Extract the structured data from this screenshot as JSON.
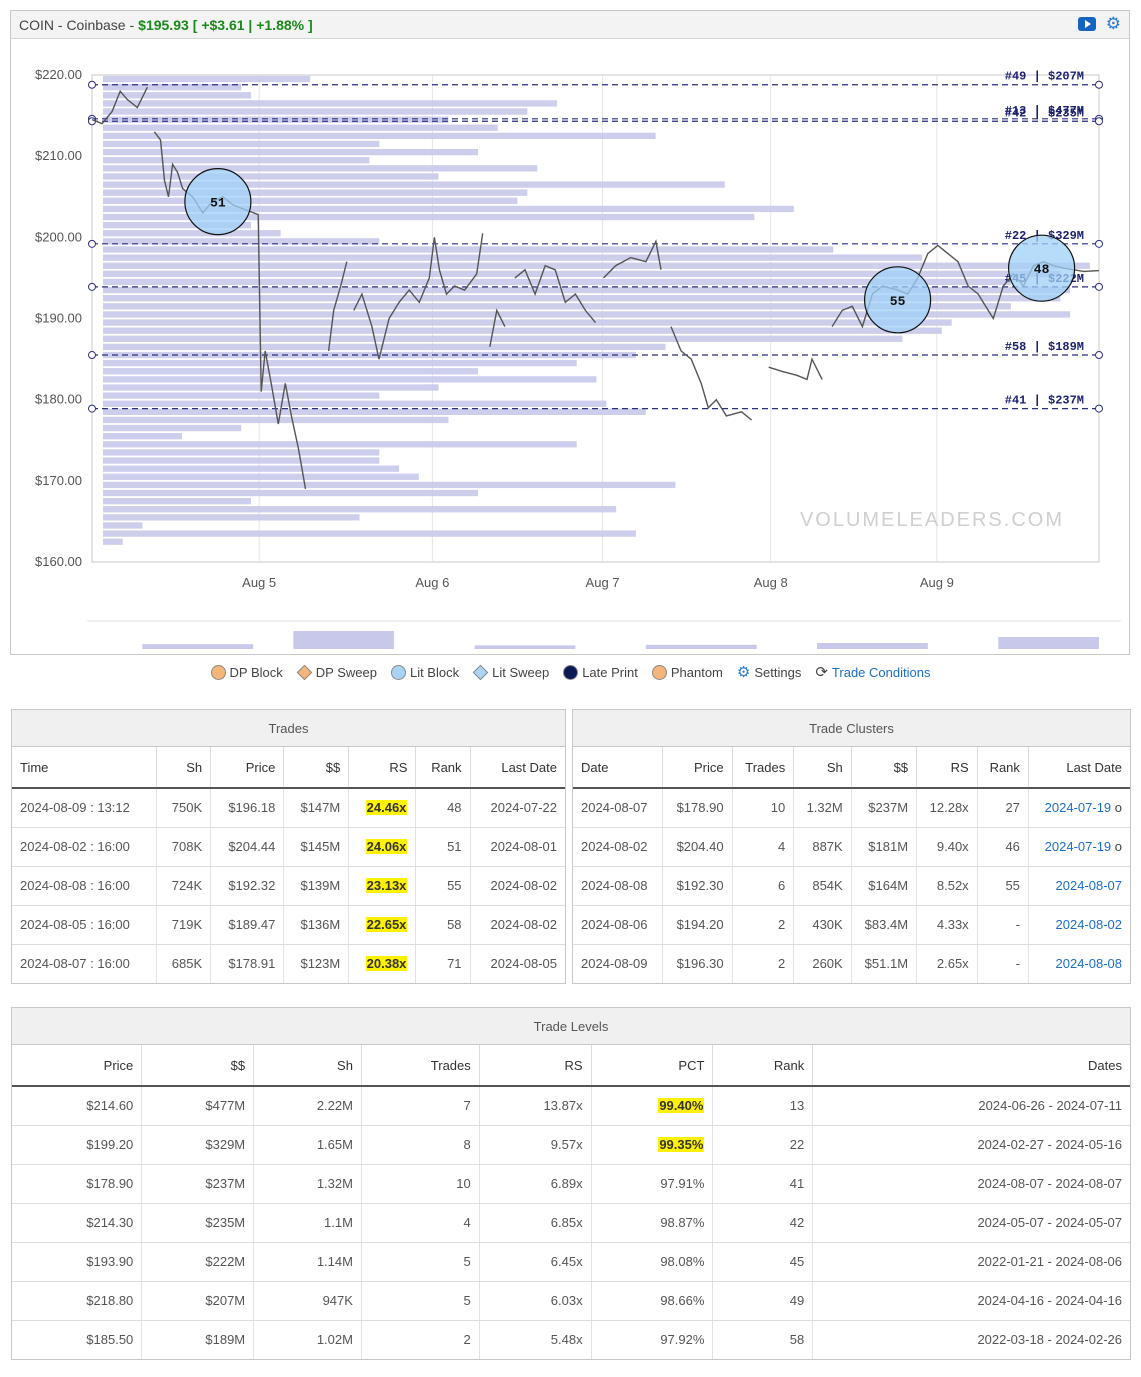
{
  "header": {
    "symbol": "COIN - Coinbase -",
    "price": "$195.93",
    "change": "[ +$3.61 | +1.88% ]",
    "icons": [
      "youtube-icon",
      "settings-gear-icon"
    ]
  },
  "chart_data": {
    "type": "line",
    "title": "",
    "ylim": [
      160,
      220
    ],
    "y_ticks": [
      "$220.00",
      "$210.00",
      "$200.00",
      "$190.00",
      "$180.00",
      "$170.00",
      "$160.00"
    ],
    "x_ticks": [
      "Aug 5",
      "Aug 6",
      "Aug 7",
      "Aug 8",
      "Aug 9"
    ],
    "watermark": "VOLUMELEADERS.COM",
    "levels": [
      {
        "label": "#49 | $207M",
        "price": 218.8
      },
      {
        "label": "#13 | $477M",
        "price": 214.6
      },
      {
        "label": "#42 | $235M",
        "price": 214.3
      },
      {
        "label": "#22 | $329M",
        "price": 199.2
      },
      {
        "label": "#45 | $222M",
        "price": 193.9
      },
      {
        "label": "#58 | $189M",
        "price": 185.5
      },
      {
        "label": "#41 | $237M",
        "price": 178.9
      }
    ],
    "bubbles": [
      {
        "label": "51",
        "price": 204.4,
        "time": 0.125
      },
      {
        "label": "55",
        "price": 192.3,
        "time": 0.8
      },
      {
        "label": "48",
        "price": 196.2,
        "time": 0.943
      }
    ],
    "price_series": [
      [
        0.0,
        214.5
      ],
      [
        0.01,
        214
      ],
      [
        0.02,
        215.5
      ],
      [
        0.028,
        218
      ],
      [
        0.035,
        217
      ],
      [
        0.045,
        216
      ],
      [
        0.055,
        218.5
      ],
      [
        0.062,
        213
      ],
      [
        0.068,
        212
      ],
      [
        0.072,
        207
      ],
      [
        0.076,
        205
      ],
      [
        0.08,
        209
      ],
      [
        0.085,
        208
      ],
      [
        0.09,
        206
      ],
      [
        0.1,
        205
      ],
      [
        0.11,
        203
      ],
      [
        0.12,
        204.5
      ],
      [
        0.13,
        205
      ],
      [
        0.14,
        204
      ],
      [
        0.15,
        203.5
      ],
      [
        0.165,
        202.8
      ],
      [
        0.168,
        181
      ],
      [
        0.172,
        186
      ],
      [
        0.178,
        182
      ],
      [
        0.185,
        177
      ],
      [
        0.192,
        182
      ],
      [
        0.198,
        178
      ],
      [
        0.205,
        174
      ],
      [
        0.212,
        169
      ],
      [
        0.218,
        163
      ],
      [
        0.222,
        172
      ],
      [
        0.226,
        161
      ],
      [
        0.23,
        176
      ],
      [
        0.235,
        186
      ],
      [
        0.24,
        191
      ],
      [
        0.247,
        194
      ],
      [
        0.253,
        197
      ],
      [
        0.26,
        191
      ],
      [
        0.268,
        193
      ],
      [
        0.278,
        189
      ],
      [
        0.285,
        185
      ],
      [
        0.295,
        190
      ],
      [
        0.305,
        192
      ],
      [
        0.315,
        193.5
      ],
      [
        0.325,
        192
      ],
      [
        0.335,
        195
      ],
      [
        0.34,
        200
      ],
      [
        0.345,
        196
      ],
      [
        0.352,
        193
      ],
      [
        0.36,
        194
      ],
      [
        0.37,
        193.5
      ],
      [
        0.382,
        195.5
      ],
      [
        0.388,
        200.5
      ],
      [
        0.395,
        186.5
      ],
      [
        0.402,
        191
      ],
      [
        0.41,
        189
      ],
      [
        0.42,
        195
      ],
      [
        0.43,
        196
      ],
      [
        0.44,
        193
      ],
      [
        0.45,
        196.5
      ],
      [
        0.46,
        196
      ],
      [
        0.47,
        192
      ],
      [
        0.48,
        193
      ],
      [
        0.49,
        191
      ],
      [
        0.5,
        189.5
      ],
      [
        0.508,
        195
      ],
      [
        0.52,
        196.5
      ],
      [
        0.535,
        197.5
      ],
      [
        0.55,
        197
      ],
      [
        0.56,
        199.5
      ],
      [
        0.565,
        196
      ],
      [
        0.575,
        189
      ],
      [
        0.585,
        186
      ],
      [
        0.595,
        185
      ],
      [
        0.605,
        182
      ],
      [
        0.612,
        179
      ],
      [
        0.62,
        180
      ],
      [
        0.63,
        178
      ],
      [
        0.645,
        178.5
      ],
      [
        0.655,
        177.5
      ],
      [
        0.672,
        184
      ],
      [
        0.685,
        183.5
      ],
      [
        0.7,
        183
      ],
      [
        0.71,
        182.5
      ],
      [
        0.715,
        185
      ],
      [
        0.725,
        182.5
      ],
      [
        0.735,
        189
      ],
      [
        0.745,
        191
      ],
      [
        0.755,
        191.5
      ],
      [
        0.765,
        189
      ],
      [
        0.775,
        193
      ],
      [
        0.785,
        194
      ],
      [
        0.8,
        193.5
      ],
      [
        0.81,
        193
      ],
      [
        0.82,
        195
      ],
      [
        0.83,
        198
      ],
      [
        0.84,
        199
      ],
      [
        0.85,
        198
      ],
      [
        0.86,
        197
      ],
      [
        0.87,
        194
      ],
      [
        0.88,
        193
      ],
      [
        0.89,
        191
      ],
      [
        0.895,
        190
      ],
      [
        0.905,
        194
      ],
      [
        0.915,
        195.5
      ],
      [
        0.925,
        194
      ],
      [
        0.935,
        196.5
      ],
      [
        0.945,
        197
      ],
      [
        0.955,
        196.5
      ],
      [
        0.965,
        196.2
      ],
      [
        0.975,
        196
      ],
      [
        0.985,
        195.8
      ],
      [
        1.0,
        195.9
      ]
    ],
    "profile_bars": [
      [
        219.5,
        0.21
      ],
      [
        218.5,
        0.14
      ],
      [
        217.5,
        0.15
      ],
      [
        216.5,
        0.46
      ],
      [
        215.5,
        0.43
      ],
      [
        214.5,
        0.35
      ],
      [
        213.5,
        0.4
      ],
      [
        212.5,
        0.56
      ],
      [
        211.5,
        0.28
      ],
      [
        210.5,
        0.38
      ],
      [
        209.5,
        0.27
      ],
      [
        208.5,
        0.44
      ],
      [
        207.5,
        0.34
      ],
      [
        206.5,
        0.63
      ],
      [
        205.5,
        0.43
      ],
      [
        204.5,
        0.42
      ],
      [
        203.5,
        0.7
      ],
      [
        202.5,
        0.66
      ],
      [
        201.5,
        0.15
      ],
      [
        200.5,
        0.18
      ],
      [
        199.5,
        0.28
      ],
      [
        198.5,
        0.74
      ],
      [
        197.5,
        0.83
      ],
      [
        196.5,
        1.0
      ],
      [
        195.5,
        0.97
      ],
      [
        194.5,
        0.92
      ],
      [
        193.5,
        0.98
      ],
      [
        192.5,
        0.97
      ],
      [
        191.5,
        0.92
      ],
      [
        190.5,
        0.98
      ],
      [
        189.5,
        0.86
      ],
      [
        188.5,
        0.85
      ],
      [
        187.5,
        0.81
      ],
      [
        186.5,
        0.57
      ],
      [
        185.5,
        0.54
      ],
      [
        184.5,
        0.48
      ],
      [
        183.5,
        0.38
      ],
      [
        182.5,
        0.5
      ],
      [
        181.5,
        0.34
      ],
      [
        180.5,
        0.28
      ],
      [
        179.5,
        0.51
      ],
      [
        178.5,
        0.55
      ],
      [
        177.5,
        0.35
      ],
      [
        176.5,
        0.14
      ],
      [
        175.5,
        0.08
      ],
      [
        174.5,
        0.48
      ],
      [
        173.5,
        0.28
      ],
      [
        172.5,
        0.28
      ],
      [
        171.5,
        0.3
      ],
      [
        170.5,
        0.32
      ],
      [
        169.5,
        0.58
      ],
      [
        168.5,
        0.38
      ],
      [
        167.5,
        0.15
      ],
      [
        166.5,
        0.52
      ],
      [
        165.5,
        0.26
      ],
      [
        164.5,
        0.04
      ],
      [
        163.5,
        0.54
      ],
      [
        162.5,
        0.02
      ]
    ]
  },
  "legend": [
    {
      "label": "DP Block",
      "color": "#f4b57b",
      "shape": "circle"
    },
    {
      "label": "DP Sweep",
      "color": "#f4b57b",
      "shape": "diamond"
    },
    {
      "label": "Lit Block",
      "color": "#a9d4f5",
      "shape": "circle"
    },
    {
      "label": "Lit Sweep",
      "color": "#a9d4f5",
      "shape": "diamond"
    },
    {
      "label": "Late Print",
      "color": "#0b1a55",
      "shape": "circle"
    },
    {
      "label": "Phantom",
      "color": "#f4b57b",
      "shape": "circle"
    },
    {
      "label": "Settings",
      "icon": "settings-gear-icon"
    },
    {
      "label": "Trade Conditions",
      "icon": "trade-conditions-icon"
    }
  ],
  "trades": {
    "title": "Trades",
    "columns": [
      "Time",
      "Sh",
      "Price",
      "$$",
      "RS",
      "Rank",
      "Last Date"
    ],
    "rows": [
      [
        "2024-08-09 : 13:12",
        "750K",
        "$196.18",
        "$147M",
        "24.46x",
        "48",
        "2024-07-22"
      ],
      [
        "2024-08-02 : 16:00",
        "708K",
        "$204.44",
        "$145M",
        "24.06x",
        "51",
        "2024-08-01"
      ],
      [
        "2024-08-08 : 16:00",
        "724K",
        "$192.32",
        "$139M",
        "23.13x",
        "55",
        "2024-08-02"
      ],
      [
        "2024-08-05 : 16:00",
        "719K",
        "$189.47",
        "$136M",
        "22.65x",
        "58",
        "2024-08-02"
      ],
      [
        "2024-08-07 : 16:00",
        "685K",
        "$178.91",
        "$123M",
        "20.38x",
        "71",
        "2024-08-05"
      ]
    ]
  },
  "clusters": {
    "title": "Trade Clusters",
    "columns": [
      "Date",
      "Price",
      "Trades",
      "Sh",
      "$$",
      "RS",
      "Rank",
      "Last Date"
    ],
    "rows": [
      [
        "2024-08-07",
        "$178.90",
        "10",
        "1.32M",
        "$237M",
        "12.28x",
        "27",
        "2024-07-19",
        "o"
      ],
      [
        "2024-08-02",
        "$204.40",
        "4",
        "887K",
        "$181M",
        "9.40x",
        "46",
        "2024-07-19",
        "o"
      ],
      [
        "2024-08-08",
        "$192.30",
        "6",
        "854K",
        "$164M",
        "8.52x",
        "55",
        "2024-08-07",
        ""
      ],
      [
        "2024-08-06",
        "$194.20",
        "2",
        "430K",
        "$83.4M",
        "4.33x",
        "-",
        "2024-08-02",
        ""
      ],
      [
        "2024-08-09",
        "$196.30",
        "2",
        "260K",
        "$51.1M",
        "2.65x",
        "-",
        "2024-08-08",
        ""
      ]
    ]
  },
  "levels": {
    "title": "Trade Levels",
    "columns": [
      "Price",
      "$$",
      "Sh",
      "Trades",
      "RS",
      "PCT",
      "Rank",
      "Dates"
    ],
    "rows": [
      [
        "$214.60",
        "$477M",
        "2.22M",
        "7",
        "13.87x",
        "99.40%",
        "13",
        "2024-06-26 - 2024-07-11",
        true
      ],
      [
        "$199.20",
        "$329M",
        "1.65M",
        "8",
        "9.57x",
        "99.35%",
        "22",
        "2024-02-27 - 2024-05-16",
        true
      ],
      [
        "$178.90",
        "$237M",
        "1.32M",
        "10",
        "6.89x",
        "97.91%",
        "41",
        "2024-08-07 - 2024-08-07",
        false
      ],
      [
        "$214.30",
        "$235M",
        "1.1M",
        "4",
        "6.85x",
        "98.87%",
        "42",
        "2024-05-07 - 2024-05-07",
        false
      ],
      [
        "$193.90",
        "$222M",
        "1.14M",
        "5",
        "6.45x",
        "98.08%",
        "45",
        "2022-01-21 - 2024-08-06",
        false
      ],
      [
        "$218.80",
        "$207M",
        "947K",
        "5",
        "6.03x",
        "98.66%",
        "49",
        "2024-04-16 - 2024-04-16",
        false
      ],
      [
        "$185.50",
        "$189M",
        "1.02M",
        "2",
        "5.48x",
        "97.92%",
        "58",
        "2022-03-18 - 2024-02-26",
        false
      ]
    ]
  }
}
